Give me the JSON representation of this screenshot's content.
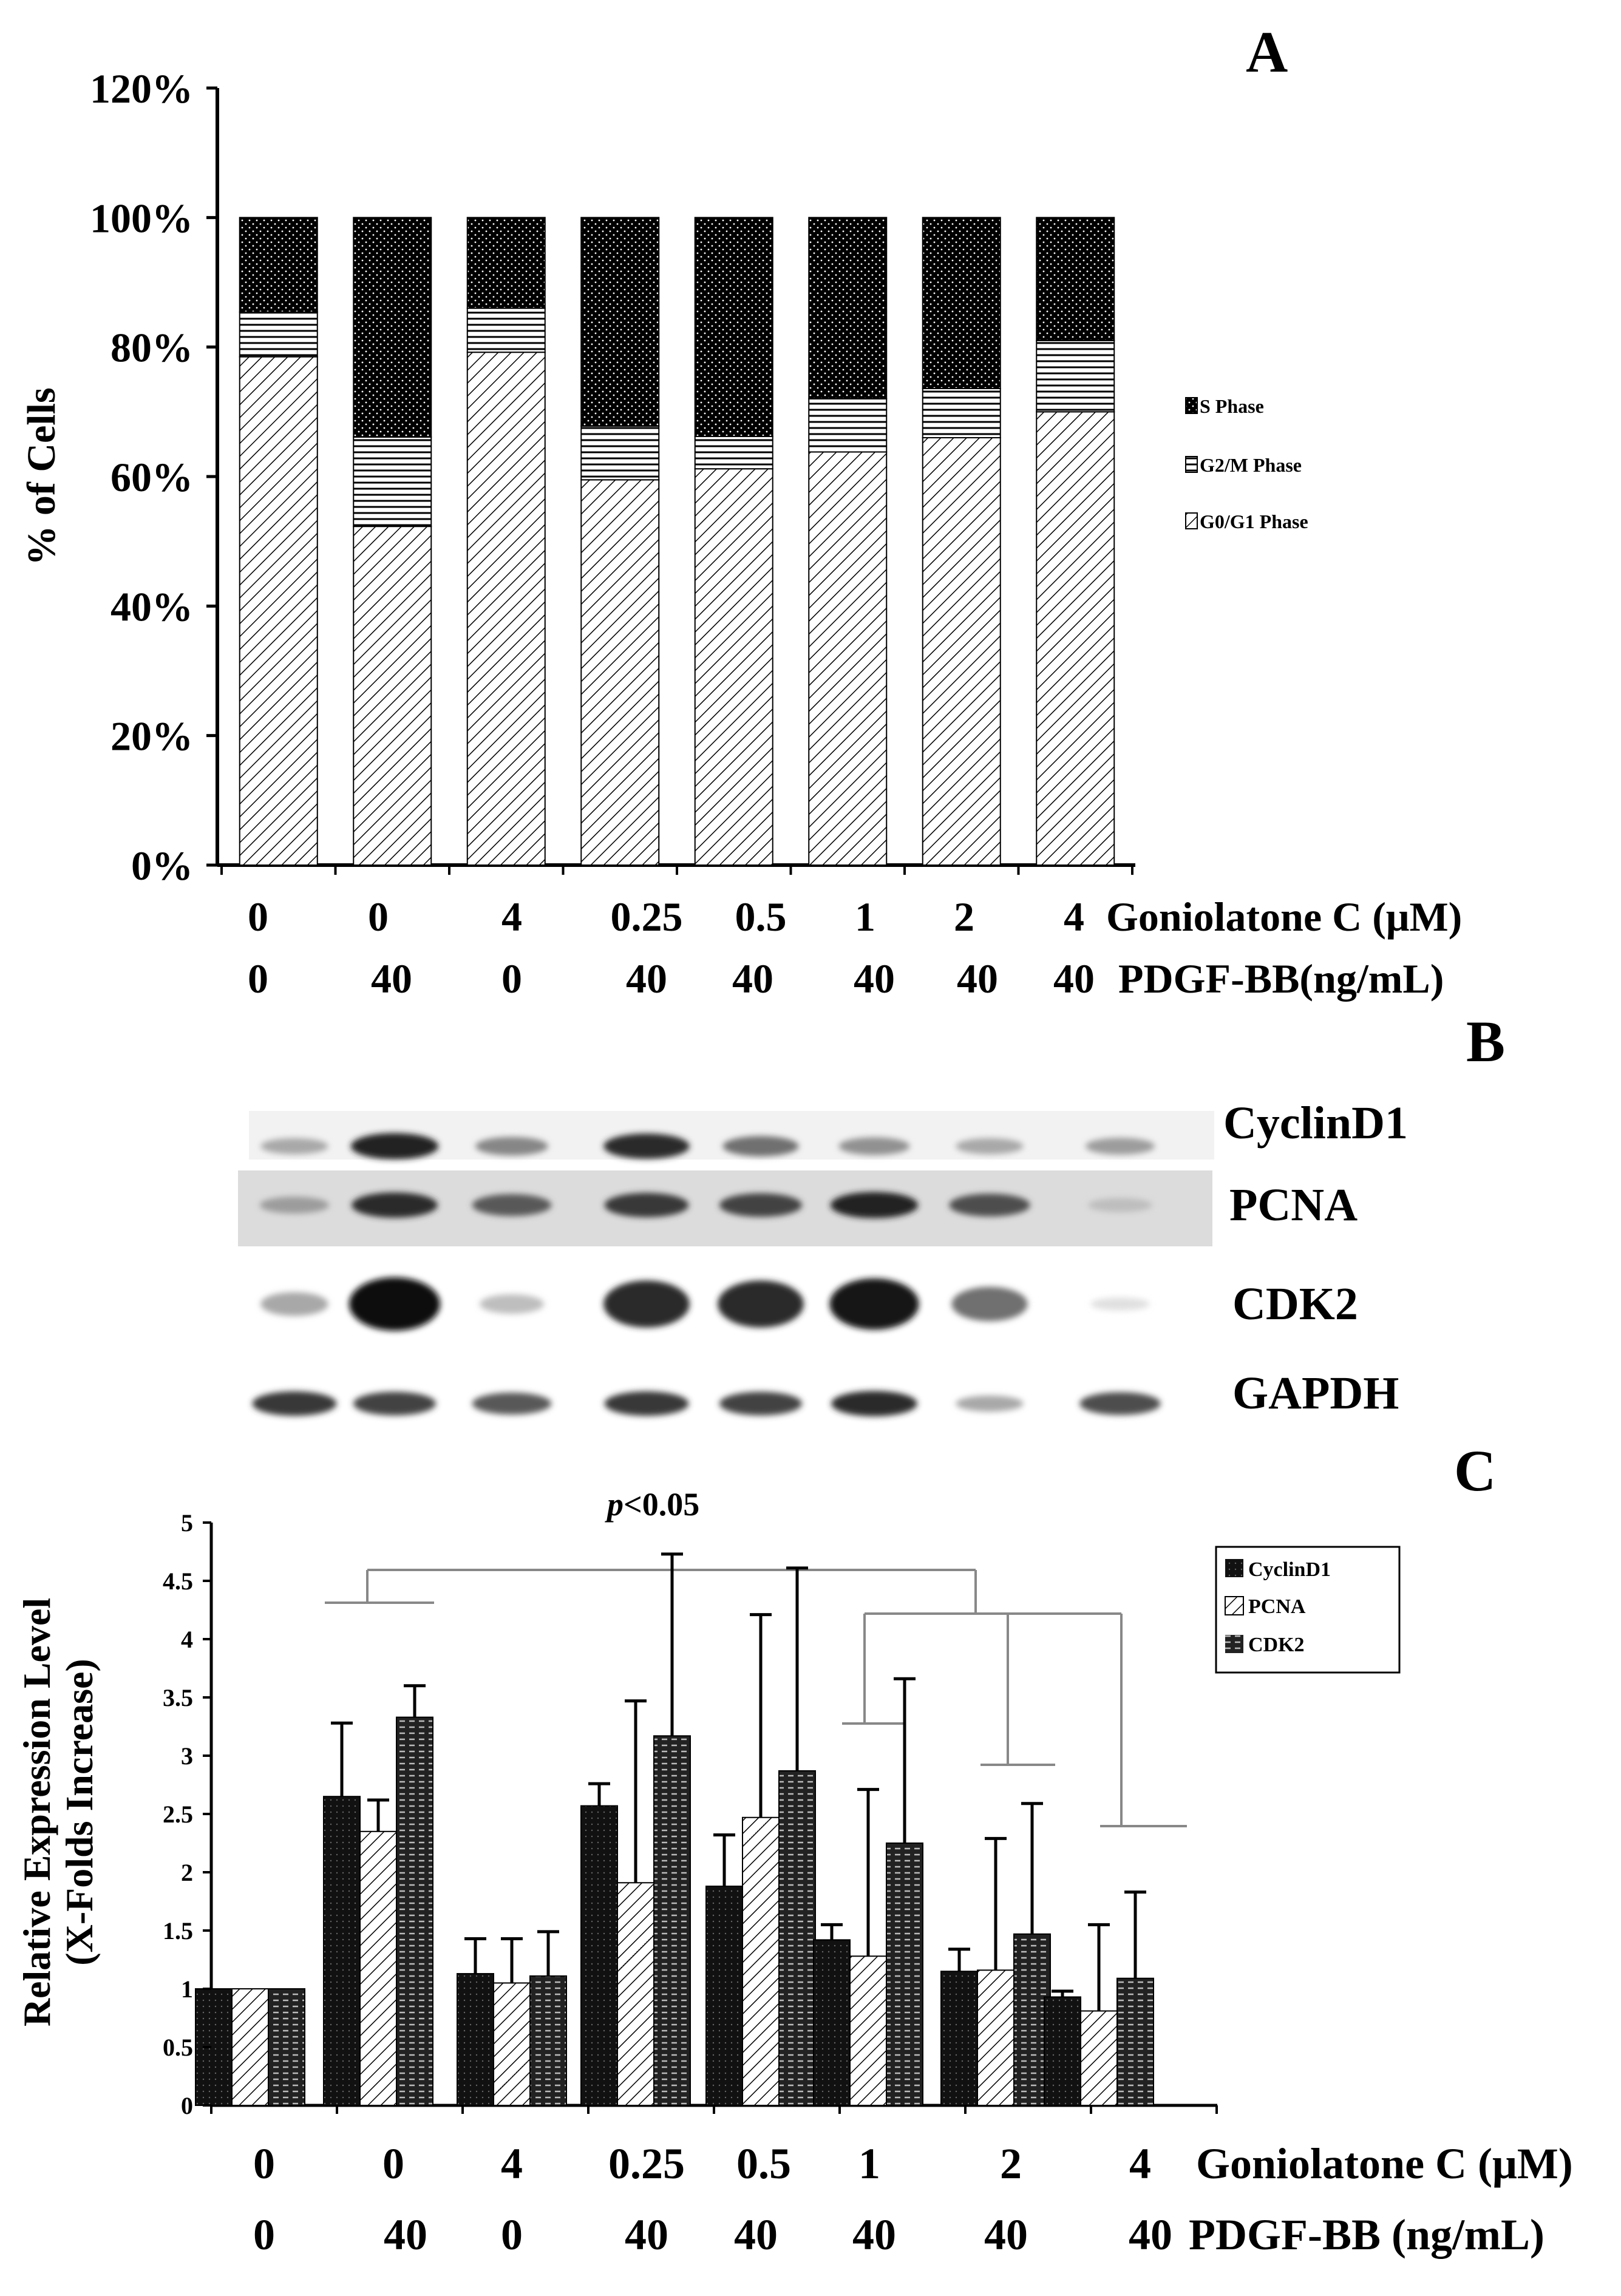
{
  "panel_labels": {
    "a": "A",
    "b": "B",
    "c": "C"
  },
  "colors": {
    "ink": "#000000",
    "bracket": "#888888",
    "band": "#1a1a1a",
    "blot_bg": "#d8d8d8"
  },
  "conditions": {
    "goniolatone": [
      "0",
      "0",
      "4",
      "0.25",
      "0.5",
      "1",
      "2",
      "4"
    ],
    "pdgf": [
      "0",
      "40",
      "0",
      "40",
      "40",
      "40",
      "40",
      "40"
    ],
    "goniolatone_label": "Goniolatone C (μM)",
    "pdgf_label_a": "PDGF-BB(ng/mL)",
    "pdgf_label_c": "PDGF-BB  (ng/mL)"
  },
  "chart_data": [
    {
      "panel": "A",
      "type": "bar",
      "stacked": true,
      "ylabel": "% of Cells",
      "ylim": [
        0,
        120
      ],
      "yticks": [
        "0%",
        "20%",
        "40%",
        "60%",
        "80%",
        "100%",
        "120%"
      ],
      "categories": [
        "0/0",
        "0/40",
        "4/0",
        "0.25/40",
        "0.5/40",
        "1/40",
        "2/40",
        "4/40"
      ],
      "series": [
        {
          "name": "G0/G1 Phase",
          "legend": "G0/G1 Phase",
          "pattern": "diag",
          "values": [
            78.5,
            52.3,
            79.2,
            59.5,
            61.2,
            63.8,
            66.0,
            70.0
          ]
        },
        {
          "name": "G2/M Phase",
          "legend": "G2/M Phase",
          "pattern": "horiz",
          "values": [
            6.9,
            13.8,
            6.8,
            8.3,
            5.0,
            8.2,
            7.6,
            11.0
          ]
        },
        {
          "name": "S Phase",
          "legend": "S Phase",
          "pattern": "dots",
          "values": [
            14.6,
            33.9,
            14.0,
            32.2,
            33.8,
            28.0,
            26.4,
            19.0
          ]
        }
      ],
      "legend_position": "right"
    },
    {
      "panel": "C",
      "type": "bar",
      "ylabel_line1": "Relative Expression Level",
      "ylabel_line2": "(X-Folds Increase)",
      "ylim": [
        0,
        5
      ],
      "yticks": [
        "0",
        "0.5",
        "1",
        "1.5",
        "2",
        "2.5",
        "3",
        "3.5",
        "4",
        "4.5",
        "5"
      ],
      "categories": [
        "0/0",
        "0/40",
        "4/0",
        "0.25/40",
        "0.5/40",
        "1/40",
        "2/40",
        "4/40"
      ],
      "series": [
        {
          "name": "CyclinD1",
          "pattern": "dark",
          "values": [
            1.0,
            2.65,
            1.13,
            2.57,
            1.88,
            1.42,
            1.15,
            0.93
          ],
          "errors": [
            0.0,
            0.63,
            0.3,
            0.19,
            0.44,
            0.13,
            0.19,
            0.05
          ]
        },
        {
          "name": "PCNA",
          "pattern": "diag",
          "values": [
            1.0,
            2.35,
            1.05,
            1.91,
            2.47,
            1.28,
            1.16,
            0.81
          ],
          "errors": [
            0.0,
            0.27,
            0.38,
            1.56,
            1.74,
            1.43,
            1.13,
            0.74
          ]
        },
        {
          "name": "CDK2",
          "pattern": "hdash",
          "values": [
            1.0,
            3.33,
            1.11,
            3.17,
            2.87,
            2.25,
            1.47,
            1.09
          ],
          "errors": [
            0.0,
            0.27,
            0.38,
            1.56,
            1.74,
            1.41,
            1.12,
            0.74
          ]
        }
      ],
      "annotation": {
        "p_symbol": "p",
        "p_text": "<0.05"
      },
      "legend_position": "top-right"
    }
  ],
  "blot": {
    "labels": [
      "CyclinD1",
      "PCNA",
      "CDK2",
      "GAPDH"
    ],
    "intensity": [
      [
        0.3,
        0.9,
        0.45,
        0.85,
        0.55,
        0.4,
        0.3,
        0.35
      ],
      [
        0.35,
        0.85,
        0.65,
        0.8,
        0.75,
        0.9,
        0.7,
        0.2
      ],
      [
        0.3,
        1.0,
        0.2,
        0.85,
        0.85,
        0.95,
        0.55,
        0.05
      ],
      [
        0.8,
        0.75,
        0.65,
        0.8,
        0.75,
        0.85,
        0.3,
        0.7
      ]
    ]
  }
}
